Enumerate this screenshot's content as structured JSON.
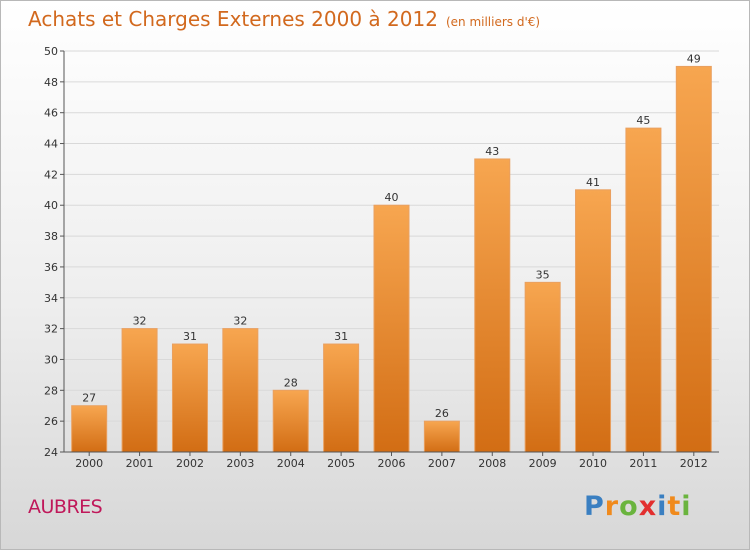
{
  "title": "Achats et Charges Externes 2000 à 2012",
  "subtitle": "(en milliers d'€)",
  "commune": "AUBRES",
  "logo": {
    "letters": [
      "P",
      "r",
      "o",
      "x",
      "i",
      "t",
      "i"
    ],
    "colors": [
      "#3a7fc1",
      "#f08a1c",
      "#6ab43e",
      "#e22f2f",
      "#3a7fc1",
      "#f08a1c",
      "#6ab43e"
    ]
  },
  "colors": {
    "bar_top": "#f7a650",
    "bar_bottom": "#d26d14",
    "text": "#333333",
    "grid": "#d9d9d9"
  },
  "chart_data": {
    "type": "bar",
    "categories": [
      "2000",
      "2001",
      "2002",
      "2003",
      "2004",
      "2005",
      "2006",
      "2007",
      "2008",
      "2009",
      "2010",
      "2011",
      "2012"
    ],
    "values": [
      27,
      32,
      31,
      32,
      28,
      31,
      40,
      26,
      43,
      35,
      41,
      45,
      49
    ],
    "yticks": [
      24,
      26,
      28,
      30,
      32,
      34,
      36,
      38,
      40,
      42,
      44,
      46,
      48,
      50
    ],
    "ylim": [
      24,
      50
    ],
    "grid": true
  }
}
